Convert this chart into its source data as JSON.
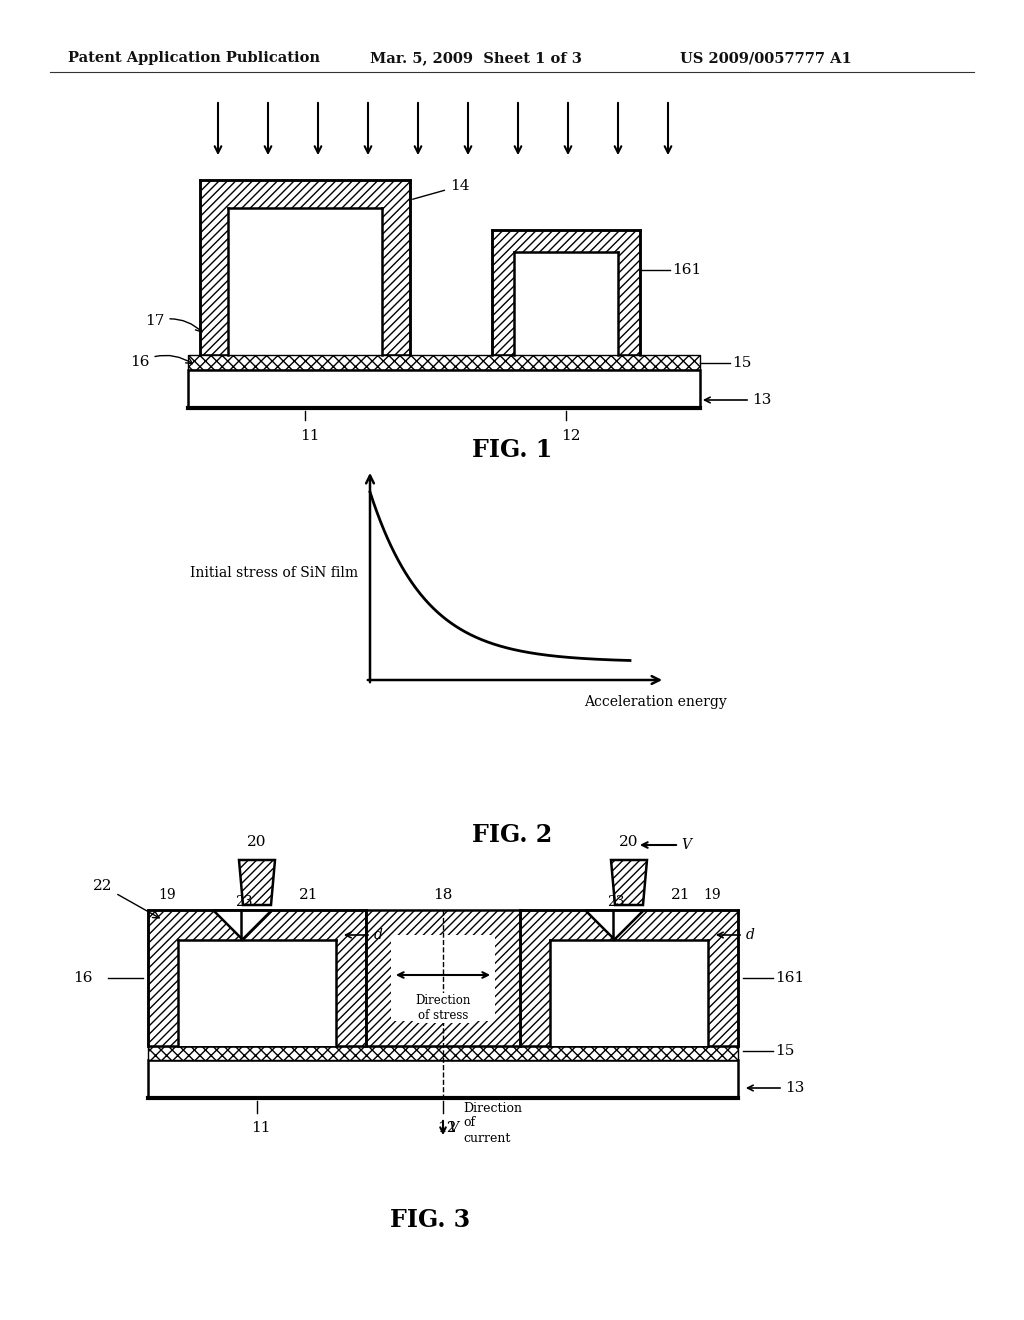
{
  "bg_color": "#ffffff",
  "header_left": "Patent Application Publication",
  "header_mid": "Mar. 5, 2009  Sheet 1 of 3",
  "header_right": "US 2009/0057777 A1",
  "fig1_label": "FIG. 1",
  "fig2_label": "FIG. 2",
  "fig3_label": "FIG. 3",
  "fig2_ylabel": "Initial stress of SiN film",
  "fig2_xlabel": "Acceleration energy",
  "line_color": "#000000"
}
